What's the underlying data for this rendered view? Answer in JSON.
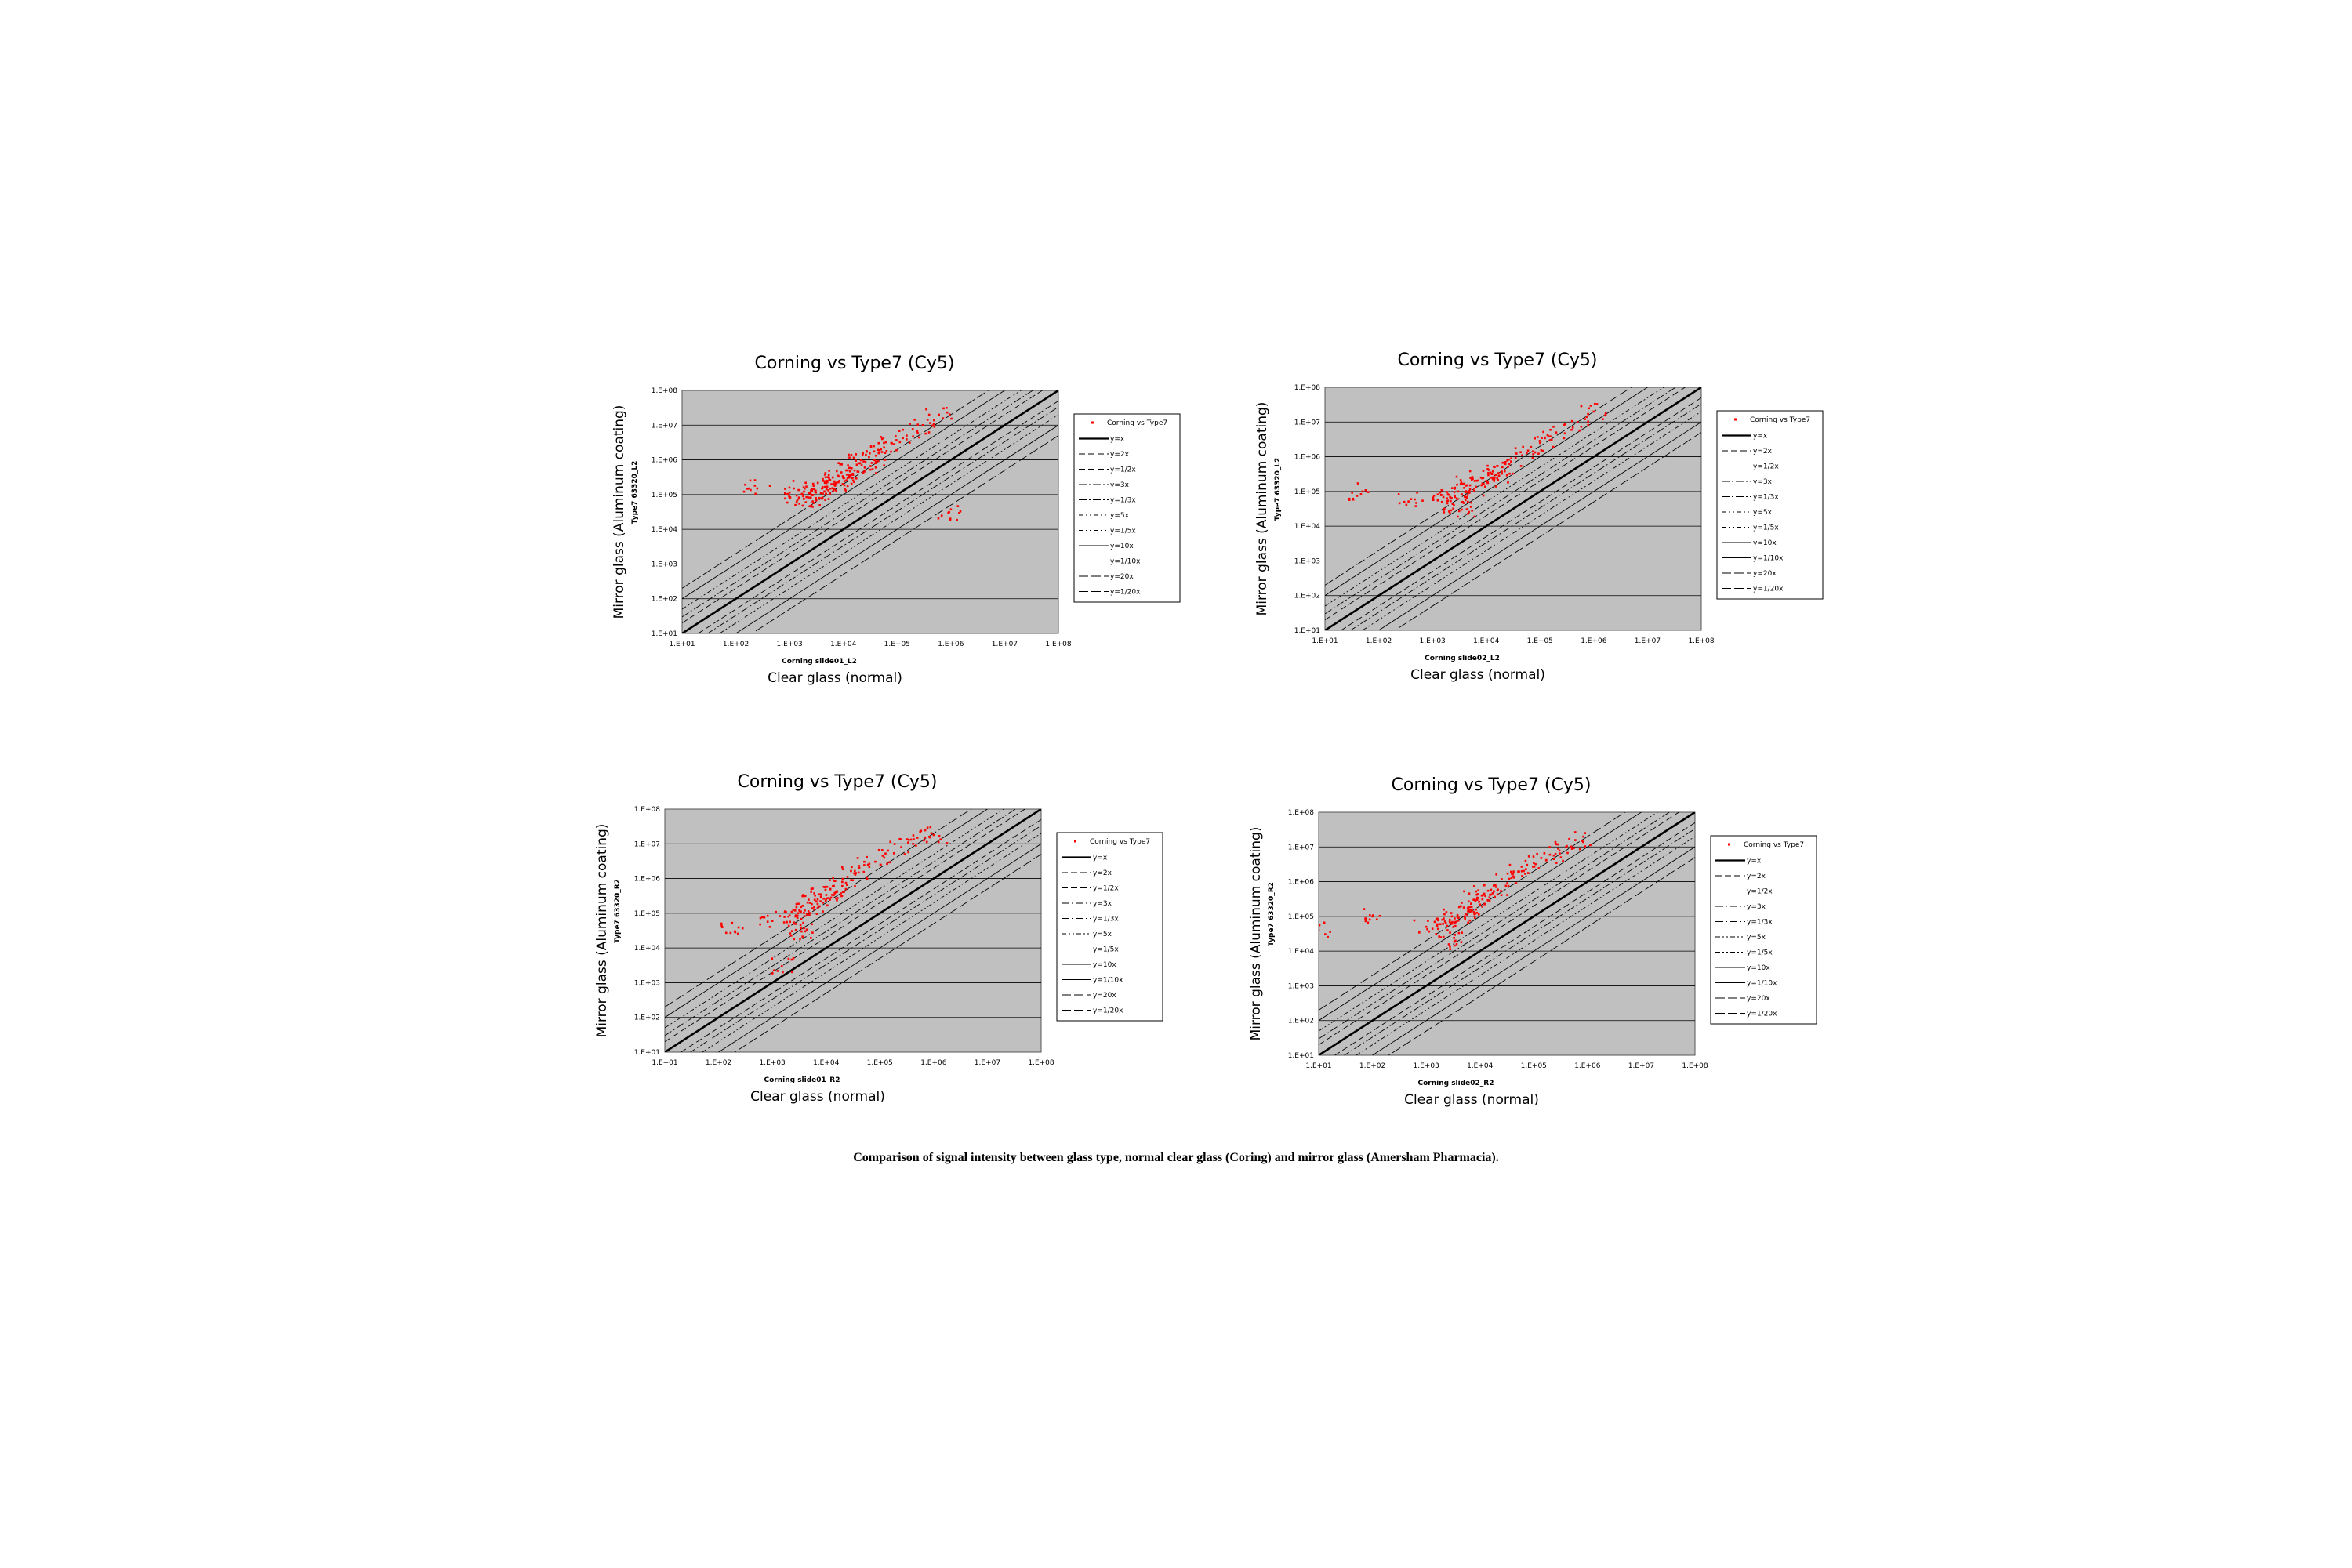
{
  "caption": "Comparison of signal intensity between glass type, normal clear glass (Coring) and mirror glass (Amersham Pharmacia).",
  "colors": {
    "plot_bg": "#c0c0c0",
    "points": "#ff0000",
    "lines": "#000000"
  },
  "legend_entries": [
    "Corning vs Type7",
    "y=x",
    "y=2x",
    "y=1/2x",
    "y=3x",
    "y=1/3x",
    "y=5x",
    "y=1/5x",
    "y=10x",
    "y=1/10x",
    "y=20x",
    "y=1/20x"
  ],
  "chart_data": [
    {
      "type": "scatter",
      "title": "Corning vs Type7 (Cy5)",
      "xlabel": "Clear glass (normal)",
      "xsublabel": "Corning slide01_L2",
      "ylabel": "Mirror glass (Aluminum coating)",
      "ysublabel": "Type7 63320_L2",
      "scale": "log",
      "xlim": [
        10,
        100000000
      ],
      "ylim": [
        10,
        100000000
      ],
      "xticks": [
        "1.E+01",
        "1.E+02",
        "1.E+03",
        "1.E+04",
        "1.E+05",
        "1.E+06",
        "1.E+07",
        "1.E+08"
      ],
      "yticks": [
        "1.E+01",
        "1.E+02",
        "1.E+03",
        "1.E+04",
        "1.E+05",
        "1.E+06",
        "1.E+07",
        "1.E+08"
      ],
      "grid": true,
      "legend_position": "right",
      "series_name": "Corning vs Type7",
      "reference_lines": [
        1,
        2,
        0.5,
        3,
        0.3333,
        5,
        0.2,
        10,
        0.1,
        20,
        0.05
      ],
      "points": [
        [
          250,
          150000
        ],
        [
          1200,
          150000
        ],
        [
          1000,
          80000
        ],
        [
          3000,
          120000
        ],
        [
          5000,
          250000
        ],
        [
          8000,
          350000
        ],
        [
          12000,
          500000
        ],
        [
          20000,
          800000
        ],
        [
          30000,
          1200000
        ],
        [
          50000,
          2000000
        ],
        [
          80000,
          3000000
        ],
        [
          150000,
          5000000
        ],
        [
          300000,
          10000000
        ],
        [
          600000,
          20000000
        ],
        [
          2000,
          60000
        ],
        [
          4000,
          150000
        ],
        [
          6000,
          200000
        ],
        [
          10000,
          300000
        ],
        [
          15000,
          400000
        ],
        [
          2500,
          100000
        ],
        [
          3500,
          80000
        ],
        [
          7000,
          180000
        ],
        [
          25000,
          600000
        ],
        [
          40000,
          900000
        ],
        [
          900000,
          30000
        ]
      ]
    },
    {
      "type": "scatter",
      "title": "Corning vs Type7 (Cy5)",
      "xlabel": "Clear glass (normal)",
      "xsublabel": "Corning slide02_L2",
      "ylabel": "Mirror glass (Aluminum coating)",
      "ysublabel": "Type7 63320_L2",
      "scale": "log",
      "xlim": [
        10,
        100000000
      ],
      "ylim": [
        10,
        100000000
      ],
      "xticks": [
        "1.E+01",
        "1.E+02",
        "1.E+03",
        "1.E+04",
        "1.E+05",
        "1.E+06",
        "1.E+07",
        "1.E+08"
      ],
      "yticks": [
        "1.E+01",
        "1.E+02",
        "1.E+03",
        "1.E+04",
        "1.E+05",
        "1.E+06",
        "1.E+07",
        "1.E+08"
      ],
      "grid": true,
      "legend_position": "right",
      "series_name": "Corning vs Type7",
      "reference_lines": [
        1,
        2,
        0.5,
        3,
        0.3333,
        5,
        0.2,
        10,
        0.1,
        20,
        0.05
      ],
      "points": [
        [
          50,
          100000
        ],
        [
          400,
          60000
        ],
        [
          1500,
          50000
        ],
        [
          2000,
          80000
        ],
        [
          3000,
          100000
        ],
        [
          5000,
          150000
        ],
        [
          8000,
          250000
        ],
        [
          12000,
          350000
        ],
        [
          20000,
          500000
        ],
        [
          35000,
          900000
        ],
        [
          60000,
          1500000
        ],
        [
          100000,
          2500000
        ],
        [
          200000,
          5000000
        ],
        [
          500000,
          10000000
        ],
        [
          1000000,
          20000000
        ],
        [
          2500,
          40000
        ],
        [
          4000,
          70000
        ],
        [
          6000,
          120000
        ],
        [
          10000,
          200000
        ],
        [
          3500,
          30000
        ],
        [
          15000,
          300000
        ]
      ]
    },
    {
      "type": "scatter",
      "title": "Corning vs Type7 (Cy5)",
      "xlabel": "Clear glass (normal)",
      "xsublabel": "Corning slide01_R2",
      "ylabel": "Mirror glass (Aluminum coating)",
      "ysublabel": "Type7 63320_R2",
      "scale": "log",
      "xlim": [
        10,
        100000000
      ],
      "ylim": [
        10,
        100000000
      ],
      "xticks": [
        "1.E+01",
        "1.E+02",
        "1.E+03",
        "1.E+04",
        "1.E+05",
        "1.E+06",
        "1.E+07",
        "1.E+08"
      ],
      "yticks": [
        "1.E+01",
        "1.E+02",
        "1.E+03",
        "1.E+04",
        "1.E+05",
        "1.E+06",
        "1.E+07",
        "1.E+08"
      ],
      "grid": true,
      "legend_position": "right",
      "series_name": "Corning vs Type7",
      "reference_lines": [
        1,
        2,
        0.5,
        3,
        0.3333,
        5,
        0.2,
        10,
        0.1,
        20,
        0.05
      ],
      "points": [
        [
          200,
          30000
        ],
        [
          1000,
          60000
        ],
        [
          2000,
          80000
        ],
        [
          3000,
          100000
        ],
        [
          5000,
          200000
        ],
        [
          8000,
          350000
        ],
        [
          12000,
          500000
        ],
        [
          20000,
          800000
        ],
        [
          35000,
          1300000
        ],
        [
          60000,
          2500000
        ],
        [
          120000,
          4000000
        ],
        [
          250000,
          8000000
        ],
        [
          500000,
          15000000
        ],
        [
          1000000,
          18000000
        ],
        [
          2500,
          50000
        ],
        [
          4000,
          120000
        ],
        [
          6000,
          150000
        ],
        [
          10000,
          250000
        ],
        [
          15000,
          400000
        ],
        [
          3500,
          30000
        ],
        [
          1500,
          3000
        ]
      ]
    },
    {
      "type": "scatter",
      "title": "Corning vs Type7 (Cy5)",
      "xlabel": "Clear glass (normal)",
      "xsublabel": "Corning slide02_R2",
      "ylabel": "Mirror glass (Aluminum coating)",
      "ysublabel": "Type7 63320_R2",
      "scale": "log",
      "xlim": [
        10,
        100000000
      ],
      "ylim": [
        10,
        100000000
      ],
      "xticks": [
        "1.E+01",
        "1.E+02",
        "1.E+03",
        "1.E+04",
        "1.E+05",
        "1.E+06",
        "1.E+07",
        "1.E+08"
      ],
      "yticks": [
        "1.E+01",
        "1.E+02",
        "1.E+03",
        "1.E+04",
        "1.E+05",
        "1.E+06",
        "1.E+07",
        "1.E+08"
      ],
      "grid": true,
      "legend_position": "right",
      "series_name": "Corning vs Type7",
      "reference_lines": [
        1,
        2,
        0.5,
        3,
        0.3333,
        5,
        0.2,
        10,
        0.1,
        20,
        0.05
      ],
      "points": [
        [
          10,
          40000
        ],
        [
          100,
          100000
        ],
        [
          1000,
          50000
        ],
        [
          2000,
          80000
        ],
        [
          3000,
          100000
        ],
        [
          5000,
          180000
        ],
        [
          8000,
          300000
        ],
        [
          12000,
          450000
        ],
        [
          20000,
          700000
        ],
        [
          35000,
          1200000
        ],
        [
          60000,
          2000000
        ],
        [
          100000,
          3500000
        ],
        [
          200000,
          6000000
        ],
        [
          400000,
          10000000
        ],
        [
          800000,
          15000000
        ],
        [
          2500,
          40000
        ],
        [
          4000,
          90000
        ],
        [
          6000,
          140000
        ],
        [
          10000,
          220000
        ],
        [
          15000,
          350000
        ],
        [
          3500,
          20000
        ]
      ]
    }
  ]
}
